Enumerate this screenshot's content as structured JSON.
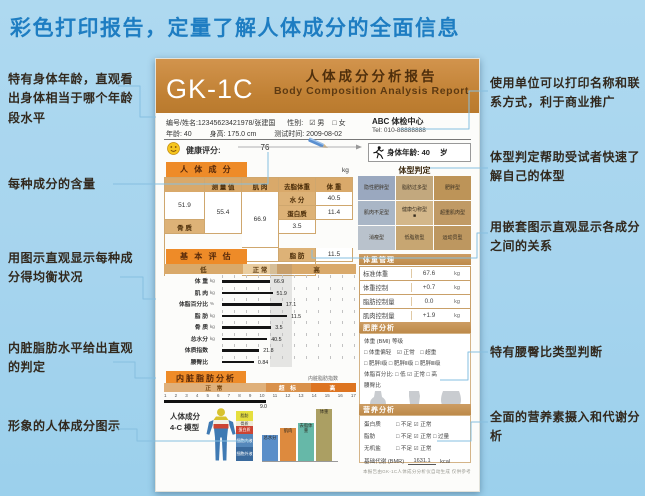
{
  "page": {
    "title": "彩色打印报告，定量了解人体成分的全面信息"
  },
  "annotations": {
    "left": [
      "特有身体年龄，直观看出身体相当于哪个年龄段水平",
      "每种成分的含量",
      "用图示直观显示每种成分得均衡状况",
      "内脏脂肪水平给出直观的判定",
      "形象的人体成分图示"
    ],
    "right": [
      "使用单位可以打印名称和联系方式，利于商业推广",
      "体型判定帮助受试者快速了解自己的体型",
      "用嵌套图示直观显示各成分之间的关系",
      "特有腰臀比类型判断",
      "全面的营养素摄入和代谢分析"
    ]
  },
  "report": {
    "model": "GK-1C",
    "title_cn": "人体成分分析报告",
    "title_en": "Body Composition Analysis Report",
    "info": {
      "id_name": "编号/姓名:12345623421978/张建国",
      "gender_label": "性别:",
      "gender_male": "☑ 男",
      "gender_female": "□ 女",
      "age": "年龄: 40",
      "height": "身高: 175.0 cm",
      "test_time": "测试时间: 2009-08-02",
      "org_name": "ABC 体检中心",
      "org_tel": "Tel: 010-88888888"
    },
    "score": {
      "label": "健康评分:",
      "value": "76"
    },
    "body_age": {
      "label": "身体年龄: 40",
      "unit": "岁"
    },
    "composition": {
      "section_title": "人 体 成 分",
      "unit": "kg",
      "headers": [
        "测 量 值",
        "肌  肉",
        "去脂体重",
        "体  重"
      ],
      "rows": [
        {
          "label": "水  分",
          "value": "40.5"
        },
        {
          "label": "蛋白质",
          "value": "11.4"
        },
        {
          "label": "骨  质",
          "value": "3.5"
        },
        {
          "label": "脂  肪",
          "value": "11.5"
        }
      ],
      "muscle": "51.9",
      "lean": "55.4",
      "weight": "66.9"
    },
    "body_type": {
      "title": "体型判定",
      "marker": "■",
      "cells": [
        "隐性肥胖型",
        "脂肪过多型",
        "肥胖型",
        "肌肉不足型",
        "健康匀称型",
        "超重肌肉型",
        "消瘦型",
        "低脂肪型",
        "运动员型"
      ]
    },
    "basic_eval": {
      "section_title": "基 本 评 估",
      "zones": [
        "低",
        "正 常",
        "高"
      ],
      "rows": [
        {
          "label": "体  重",
          "unit": "kg",
          "value": "66.9",
          "pct": 36
        },
        {
          "label": "肌  肉",
          "unit": "kg",
          "value": "51.9",
          "pct": 38
        },
        {
          "label": "体脂百分比",
          "unit": "%",
          "value": "17.1",
          "pct": 45
        },
        {
          "label": "脂  肪",
          "unit": "kg",
          "value": "11.5",
          "pct": 49
        },
        {
          "label": "骨  质",
          "unit": "kg",
          "value": "3.5",
          "pct": 37
        },
        {
          "label": "总水分",
          "unit": "kg",
          "value": "40.5",
          "pct": 34
        },
        {
          "label": "体质指数",
          "unit": "",
          "value": "21.8",
          "pct": 28
        },
        {
          "label": "腰臀比",
          "unit": "",
          "value": "0.84",
          "pct": 24
        }
      ]
    },
    "weight_mgmt": {
      "title": "体重管理",
      "rows": [
        {
          "label": "标准体重",
          "value": "67.6",
          "unit": "kg"
        },
        {
          "label": "体重控制",
          "value": "+0.7",
          "unit": "kg"
        },
        {
          "label": "脂肪控制量",
          "value": "0.0",
          "unit": "kg"
        },
        {
          "label": "肌肉控制量",
          "value": "+1.9",
          "unit": "kg"
        }
      ]
    },
    "obesity": {
      "title": "肥胖分析",
      "bmi_label": "体重 (BMI) 等级",
      "row1": "□ 体重偏轻　☑ 正常　□ 超重",
      "row2": "□ 肥胖Ⅰ级 □ 肥胖Ⅱ级 □ 肥胖Ⅲ级",
      "fat_pct": "体脂百分比:  □ 低  ☑ 正常  □ 高",
      "whr_label": "腰臀比",
      "shape_labels": [
        "☑ 梨型",
        "□ 正常",
        "□ 苹果型"
      ]
    },
    "visceral": {
      "title": "内脏脂肪分析",
      "index_label": "内脏脂肪指数",
      "zones": [
        "正  常",
        "超 标",
        "高"
      ],
      "ticks": [
        "1",
        "2",
        "3",
        "4",
        "5",
        "6",
        "7",
        "8",
        "9",
        "10",
        "11",
        "12",
        "13",
        "14",
        "15",
        "16",
        "17"
      ],
      "value": "9.0"
    },
    "model4c": {
      "label1": "人体成分",
      "label2": "4-C 模型",
      "stack": [
        "脂肪",
        "骨质",
        "蛋白质",
        "细胞内液",
        "细胞外液"
      ],
      "bars": [
        "总水分",
        "肌肉",
        "去脂体重",
        "体重"
      ]
    },
    "nutrition": {
      "title": "营养分析",
      "rows": [
        {
          "label": "蛋白质",
          "opts": "□ 不足  ☑ 正常"
        },
        {
          "label": "脂肪",
          "opts": "□ 不足  ☑ 正常  □ 过量"
        },
        {
          "label": "无机盐",
          "opts": "□ 不足  ☑ 正常"
        }
      ],
      "bmr_label": "基础代谢 (BMR)",
      "bmr_value": "1631.1",
      "bmr_unit": "kcal"
    },
    "fine_print": "本报告由GK-1C人体成分分析仪自动生成 仅供参考"
  },
  "colors": {
    "accent_blue": "#1e7dc2",
    "band_orange": "#c5873c",
    "chip_orange": "#ee8b28",
    "connector_blue": "#86bfe0"
  }
}
